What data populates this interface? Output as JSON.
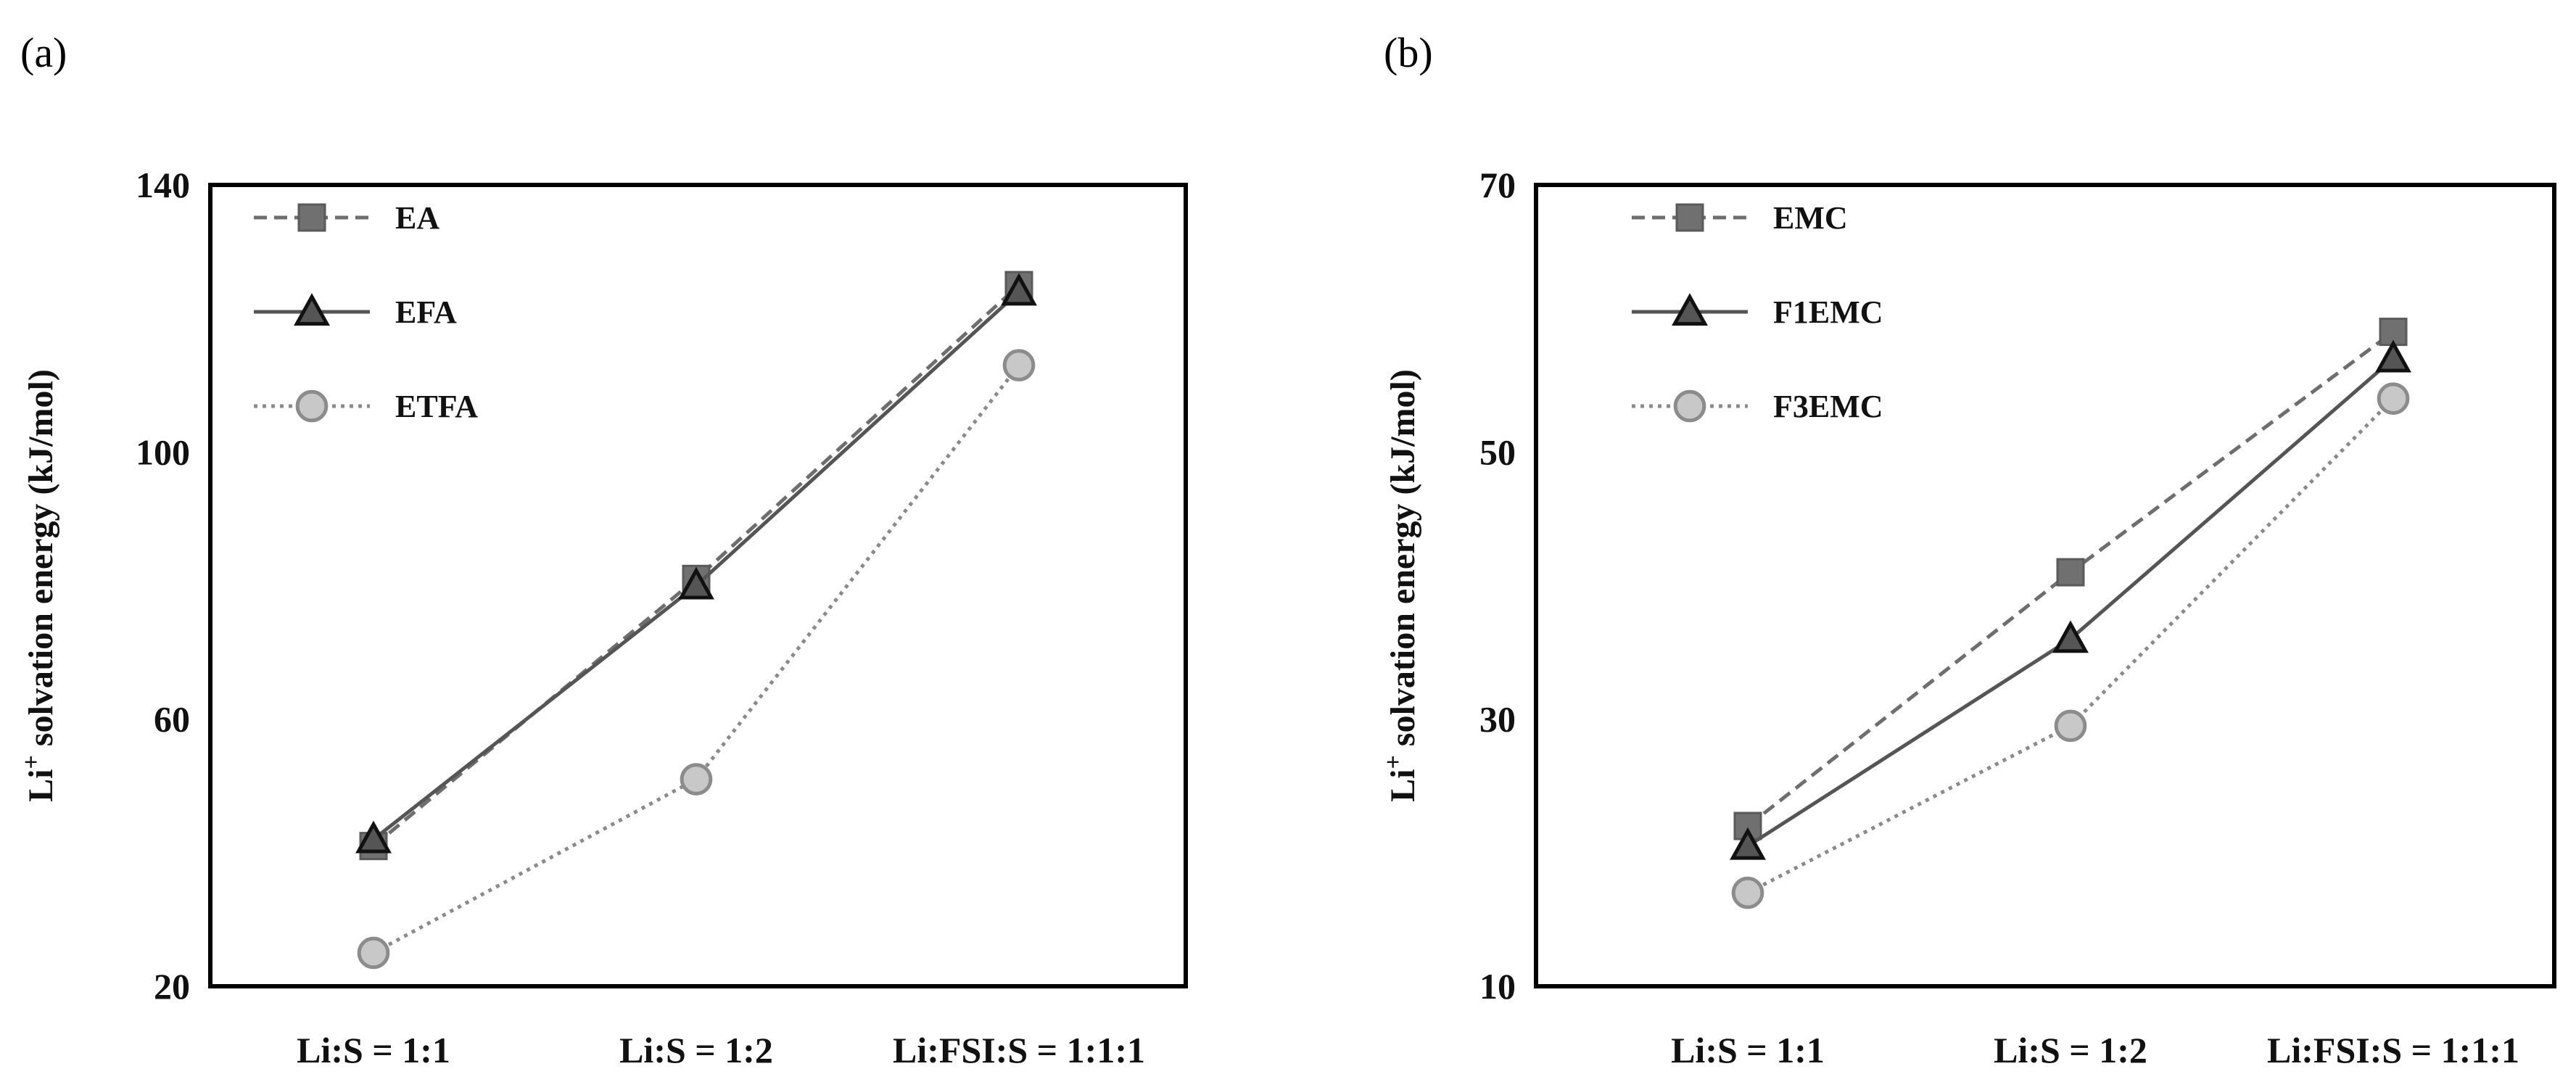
{
  "chart_data": [
    {
      "panel": "(a)",
      "type": "line",
      "ylabel_main": "Li",
      "ylabel_sup": "+",
      "ylabel_rest": " solvation energy (kJ/mol)",
      "ylim": [
        20,
        140
      ],
      "yticks": [
        20,
        60,
        100,
        140
      ],
      "categories": [
        "Li:S = 1:1",
        "Li:S = 1:2",
        "Li:FSI:S = 1:1:1"
      ],
      "legend_position": "top-left",
      "grid": false,
      "series": [
        {
          "name": "EA",
          "values": [
            41,
            81,
            125
          ],
          "marker": "square",
          "dash": "dashed",
          "color": "#6e6e6e",
          "fill": "#707070"
        },
        {
          "name": "EFA",
          "values": [
            42,
            80,
            124
          ],
          "marker": "triangle",
          "dash": "solid",
          "color": "#555555",
          "fill": "#555555"
        },
        {
          "name": "ETFA",
          "values": [
            25,
            51,
            113
          ],
          "marker": "circle",
          "dash": "dotted",
          "color": "#8a8a8a",
          "fill": "#c8c8c8"
        }
      ]
    },
    {
      "panel": "(b)",
      "type": "line",
      "ylabel_main": "Li",
      "ylabel_sup": "+",
      "ylabel_rest": " solvation energy (kJ/mol)",
      "ylim": [
        10,
        70
      ],
      "yticks": [
        10,
        30,
        50,
        70
      ],
      "categories": [
        "Li:S = 1:1",
        "Li:S = 1:2",
        "Li:FSI:S = 1:1:1"
      ],
      "legend_position": "top-left",
      "grid": false,
      "series": [
        {
          "name": "EMC",
          "values": [
            22,
            41,
            59
          ],
          "marker": "square",
          "dash": "dashed",
          "color": "#6e6e6e",
          "fill": "#707070"
        },
        {
          "name": "F1EMC",
          "values": [
            20.5,
            36,
            57
          ],
          "marker": "triangle",
          "dash": "solid",
          "color": "#555555",
          "fill": "#555555"
        },
        {
          "name": "F3EMC",
          "values": [
            17,
            29.5,
            54
          ],
          "marker": "circle",
          "dash": "dotted",
          "color": "#8a8a8a",
          "fill": "#c8c8c8"
        }
      ]
    }
  ]
}
